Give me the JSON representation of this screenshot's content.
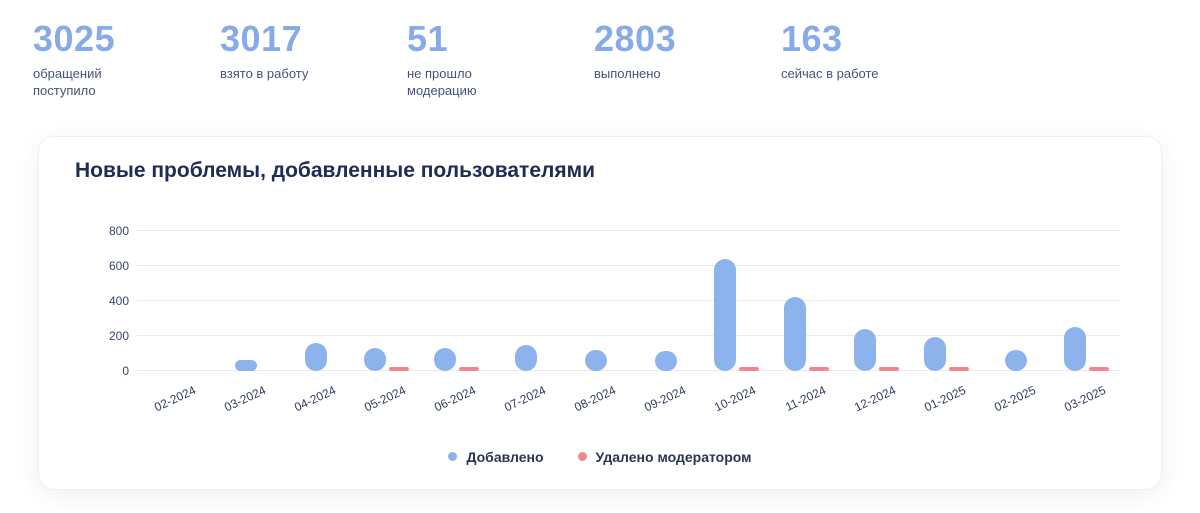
{
  "stats": {
    "items": [
      {
        "value": "3025",
        "label": "обращений поступило"
      },
      {
        "value": "3017",
        "label": "взято в работу"
      },
      {
        "value": "51",
        "label": "не прошло модерацию"
      },
      {
        "value": "2803",
        "label": "выполнено"
      },
      {
        "value": "163",
        "label": "сейчас в работе"
      }
    ]
  },
  "card": {
    "title": "Новые проблемы, добавленные пользователями"
  },
  "chart_data": {
    "type": "bar",
    "title": "Новые проблемы, добавленные пользователями",
    "categories": [
      "02-2024",
      "03-2024",
      "04-2024",
      "05-2024",
      "06-2024",
      "07-2024",
      "08-2024",
      "09-2024",
      "10-2024",
      "11-2024",
      "12-2024",
      "01-2025",
      "02-2025",
      "03-2025"
    ],
    "series": [
      {
        "name": "Добавлено",
        "color": "#8db3ec",
        "values": [
          0,
          60,
          160,
          130,
          130,
          150,
          120,
          115,
          640,
          420,
          240,
          195,
          120,
          250
        ]
      },
      {
        "name": "Удалено модератором",
        "color": "#f2868f",
        "values": [
          0,
          0,
          0,
          8,
          6,
          0,
          0,
          0,
          15,
          12,
          8,
          18,
          0,
          6
        ]
      }
    ],
    "ylim": [
      0,
      800
    ],
    "yticks": [
      0,
      200,
      400,
      600,
      800
    ],
    "grid": true,
    "legend_position": "bottom"
  },
  "colors": {
    "accent_blue": "#87abe8",
    "bar_blue": "#8db3ec",
    "bar_red": "#f2868f",
    "title_navy": "#202c55"
  }
}
